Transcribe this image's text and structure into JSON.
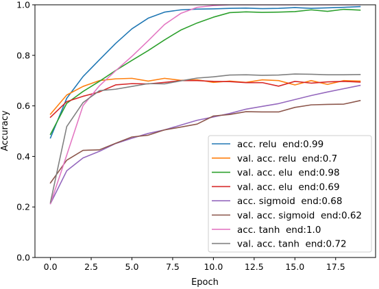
{
  "chart_data": {
    "type": "line",
    "title": "",
    "xlabel": "Epoch",
    "ylabel": "Accuracy",
    "xlim": [
      -0.95,
      19.95
    ],
    "ylim": [
      0.0,
      1.0
    ],
    "xticks": [
      "0.0",
      "2.5",
      "5.0",
      "7.5",
      "10.0",
      "12.5",
      "15.0",
      "17.5"
    ],
    "xtick_values": [
      0,
      2.5,
      5,
      7.5,
      10,
      12.5,
      15,
      17.5
    ],
    "yticks": [
      "0.0",
      "0.2",
      "0.4",
      "0.6",
      "0.8",
      "1.0"
    ],
    "ytick_values": [
      0,
      0.2,
      0.4,
      0.6,
      0.8,
      1.0
    ],
    "grid": false,
    "legend_position": "bottom-right",
    "x": [
      0,
      1,
      2,
      3,
      4,
      5,
      6,
      7,
      8,
      9,
      10,
      11,
      12,
      13,
      14,
      15,
      16,
      17,
      18,
      19
    ],
    "series": [
      {
        "name": "acc. relu  end:0.99",
        "color": "#1f77b4",
        "values": [
          0.473,
          0.63,
          0.716,
          0.782,
          0.847,
          0.905,
          0.947,
          0.971,
          0.98,
          0.983,
          0.984,
          0.986,
          0.987,
          0.985,
          0.986,
          0.989,
          0.986,
          0.988,
          0.99,
          0.993
        ]
      },
      {
        "name": "val. acc. relu  end:0.7",
        "color": "#ff7f0e",
        "values": [
          0.567,
          0.643,
          0.677,
          0.7,
          0.707,
          0.709,
          0.698,
          0.709,
          0.701,
          0.703,
          0.693,
          0.698,
          0.693,
          0.703,
          0.7,
          0.683,
          0.7,
          0.685,
          0.7,
          0.698
        ]
      },
      {
        "name": "val. acc. elu  end:0.98",
        "color": "#2ca02c",
        "values": [
          0.487,
          0.61,
          0.657,
          0.697,
          0.74,
          0.78,
          0.819,
          0.861,
          0.9,
          0.928,
          0.951,
          0.969,
          0.972,
          0.97,
          0.971,
          0.973,
          0.98,
          0.974,
          0.982,
          0.979
        ]
      },
      {
        "name": "val. acc. elu  end:0.69",
        "color": "#d62728",
        "values": [
          0.555,
          0.617,
          0.638,
          0.655,
          0.683,
          0.688,
          0.687,
          0.693,
          0.7,
          0.7,
          0.697,
          0.696,
          0.692,
          0.692,
          0.678,
          0.697,
          0.69,
          0.695,
          0.697,
          0.694
        ]
      },
      {
        "name": "acc. sigmoid  end:0.68",
        "color": "#9467bd",
        "values": [
          0.213,
          0.343,
          0.394,
          0.42,
          0.451,
          0.472,
          0.491,
          0.505,
          0.524,
          0.543,
          0.556,
          0.57,
          0.587,
          0.598,
          0.609,
          0.625,
          0.641,
          0.655,
          0.668,
          0.681
        ]
      },
      {
        "name": "val. acc. sigmoid  end:0.62",
        "color": "#8c564b",
        "values": [
          0.295,
          0.385,
          0.424,
          0.426,
          0.452,
          0.477,
          0.484,
          0.505,
          0.516,
          0.528,
          0.56,
          0.566,
          0.577,
          0.576,
          0.576,
          0.594,
          0.604,
          0.606,
          0.607,
          0.621
        ]
      },
      {
        "name": "acc. tanh  end:1.0",
        "color": "#e377c2",
        "values": [
          0.213,
          0.405,
          0.601,
          0.679,
          0.739,
          0.796,
          0.858,
          0.922,
          0.966,
          0.99,
          0.997,
          1.0,
          1.0,
          1.0,
          1.0,
          1.0,
          1.0,
          1.0,
          1.0,
          1.0
        ]
      },
      {
        "name": "val. acc. tanh  end:0.72",
        "color": "#7f7f7f",
        "values": [
          0.218,
          0.518,
          0.613,
          0.66,
          0.666,
          0.677,
          0.688,
          0.687,
          0.699,
          0.71,
          0.715,
          0.722,
          0.723,
          0.721,
          0.722,
          0.726,
          0.725,
          0.723,
          0.723,
          0.724
        ]
      }
    ]
  }
}
